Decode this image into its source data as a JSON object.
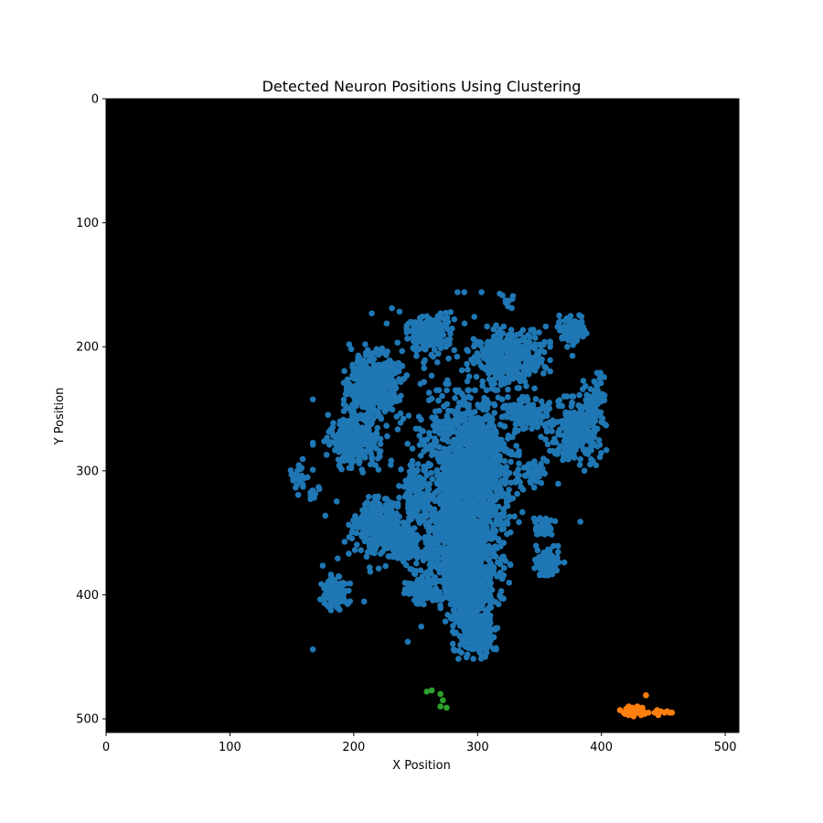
{
  "chart_data": {
    "type": "scatter",
    "title": "Detected Neuron Positions Using Clustering",
    "xlabel": "X Position",
    "ylabel": "Y Position",
    "xlim": [
      0,
      511
    ],
    "ylim": [
      511,
      0
    ],
    "y_inverted": true,
    "xticks": [
      0,
      100,
      200,
      300,
      400,
      500
    ],
    "yticks": [
      0,
      100,
      200,
      300,
      400,
      500
    ],
    "background": "#000000",
    "grid": false,
    "legend": "none",
    "series": [
      {
        "name": "cluster-0",
        "color": "#1f77b4",
        "blobs": [
          {
            "cx": 216,
            "cy": 228,
            "rx": 20,
            "ry": 25,
            "n": 450
          },
          {
            "cx": 200,
            "cy": 275,
            "rx": 18,
            "ry": 20,
            "n": 320
          },
          {
            "cx": 262,
            "cy": 190,
            "rx": 16,
            "ry": 15,
            "n": 220
          },
          {
            "cx": 325,
            "cy": 210,
            "rx": 28,
            "ry": 22,
            "n": 380
          },
          {
            "cx": 376,
            "cy": 186,
            "rx": 10,
            "ry": 12,
            "n": 100
          },
          {
            "cx": 380,
            "cy": 270,
            "rx": 20,
            "ry": 25,
            "n": 300
          },
          {
            "cx": 393,
            "cy": 245,
            "rx": 9,
            "ry": 20,
            "n": 80
          },
          {
            "cx": 340,
            "cy": 255,
            "rx": 15,
            "ry": 12,
            "n": 140
          },
          {
            "cx": 295,
            "cy": 295,
            "rx": 32,
            "ry": 50,
            "n": 1000
          },
          {
            "cx": 285,
            "cy": 355,
            "rx": 30,
            "ry": 40,
            "n": 800
          },
          {
            "cx": 292,
            "cy": 395,
            "rx": 22,
            "ry": 25,
            "n": 450
          },
          {
            "cx": 298,
            "cy": 430,
            "rx": 15,
            "ry": 18,
            "n": 250
          },
          {
            "cx": 220,
            "cy": 345,
            "rx": 20,
            "ry": 20,
            "n": 320
          },
          {
            "cx": 240,
            "cy": 360,
            "rx": 12,
            "ry": 14,
            "n": 120
          },
          {
            "cx": 185,
            "cy": 398,
            "rx": 10,
            "ry": 12,
            "n": 120
          },
          {
            "cx": 155,
            "cy": 305,
            "rx": 7,
            "ry": 12,
            "n": 30
          },
          {
            "cx": 168,
            "cy": 318,
            "rx": 5,
            "ry": 6,
            "n": 10
          },
          {
            "cx": 358,
            "cy": 375,
            "rx": 10,
            "ry": 12,
            "n": 80
          },
          {
            "cx": 353,
            "cy": 347,
            "rx": 9,
            "ry": 8,
            "n": 50
          },
          {
            "cx": 345,
            "cy": 302,
            "rx": 9,
            "ry": 10,
            "n": 60
          },
          {
            "cx": 255,
            "cy": 398,
            "rx": 12,
            "ry": 10,
            "n": 80
          },
          {
            "cx": 250,
            "cy": 320,
            "rx": 12,
            "ry": 20,
            "n": 120
          },
          {
            "cx": 323,
            "cy": 162,
            "rx": 5,
            "ry": 6,
            "n": 10
          },
          {
            "cx": 275,
            "cy": 300,
            "rx": 90,
            "ry": 120,
            "n": 350
          }
        ]
      },
      {
        "name": "cluster-1",
        "color": "#ff7f0e",
        "points": [
          [
            415,
            493
          ],
          [
            418,
            495
          ],
          [
            420,
            492
          ],
          [
            422,
            497
          ],
          [
            424,
            494
          ],
          [
            425,
            491
          ],
          [
            427,
            496
          ],
          [
            428,
            493
          ],
          [
            430,
            495
          ],
          [
            431,
            492
          ],
          [
            432,
            497
          ],
          [
            434,
            494
          ],
          [
            435,
            496
          ],
          [
            422,
            490
          ],
          [
            426,
            498
          ],
          [
            429,
            490
          ],
          [
            433,
            491
          ],
          [
            436,
            481
          ],
          [
            443,
            495
          ],
          [
            446,
            497
          ],
          [
            448,
            494
          ],
          [
            451,
            495
          ],
          [
            453,
            494
          ],
          [
            455,
            495
          ],
          [
            457,
            495
          ],
          [
            419,
            496
          ],
          [
            421,
            494
          ],
          [
            438,
            495
          ],
          [
            445,
            493
          ]
        ]
      },
      {
        "name": "cluster-2",
        "color": "#2ca02c",
        "points": [
          [
            259,
            478
          ],
          [
            263,
            477
          ],
          [
            270,
            480
          ],
          [
            272,
            485
          ],
          [
            270,
            490
          ],
          [
            275,
            491
          ]
        ]
      }
    ]
  }
}
